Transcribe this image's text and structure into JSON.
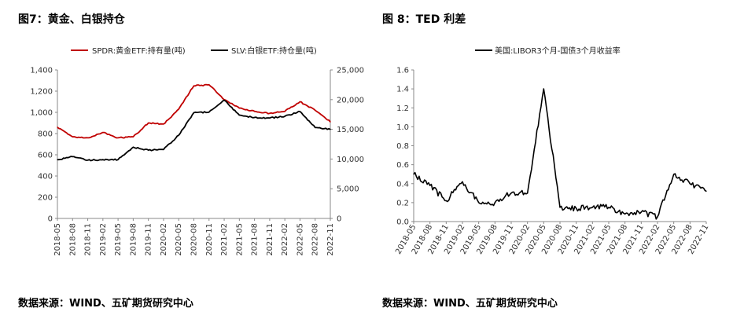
{
  "left": {
    "title": "图7：黄金、白银持仓",
    "source": "数据来源：WIND、五矿期货研究中心",
    "chart_data": {
      "type": "line",
      "title": "图7：黄金、白银持仓",
      "x": [
        "2018-05",
        "2018-08",
        "2018-11",
        "2019-02",
        "2019-05",
        "2019-08",
        "2019-11",
        "2020-02",
        "2020-05",
        "2020-08",
        "2020-11",
        "2021-02",
        "2021-05",
        "2021-08",
        "2021-11",
        "2022-02",
        "2022-05",
        "2022-08",
        "2022-11"
      ],
      "y_left_ticks": [
        "0",
        "200",
        "400",
        "600",
        "800",
        "1,000",
        "1,200",
        "1,400"
      ],
      "y_right_ticks": [
        "0",
        "5,000",
        "10,000",
        "15,000",
        "20,000",
        "25,000"
      ],
      "ylim_left": [
        0,
        1400
      ],
      "ylim_right": [
        0,
        25000
      ],
      "series": [
        {
          "name": "SPDR:黄金ETF:持有量(吨)",
          "axis": "left",
          "color": "#c00000",
          "values": [
            860,
            770,
            760,
            810,
            760,
            770,
            900,
            890,
            1030,
            1250,
            1260,
            1120,
            1040,
            1010,
            990,
            1010,
            1100,
            1020,
            910
          ]
        },
        {
          "name": "SLV:白银ETF:持仓量(吨)",
          "axis": "right",
          "color": "#000000",
          "values": [
            9900,
            10400,
            9800,
            9900,
            9900,
            12000,
            11500,
            11600,
            14000,
            17800,
            17900,
            19900,
            17400,
            17000,
            16900,
            17200,
            18000,
            15300,
            15000
          ]
        }
      ]
    }
  },
  "right": {
    "title": "图 8：TED 利差",
    "source": "数据来源：WIND、五矿期货研究中心",
    "chart_data": {
      "type": "line",
      "title": "图 8：TED 利差",
      "x": [
        "2018-05",
        "2018-08",
        "2018-11",
        "2019-02",
        "2019-05",
        "2019-08",
        "2019-11",
        "2020-02",
        "2020-05",
        "2020-08",
        "2020-11",
        "2021-02",
        "2021-05",
        "2021-08",
        "2021-11",
        "2022-02",
        "2022-05",
        "2022-08",
        "2022-11"
      ],
      "y_ticks": [
        "0.0",
        "0.2",
        "0.4",
        "0.6",
        "0.8",
        "1.0",
        "1.2",
        "1.4",
        "1.6"
      ],
      "ylim": [
        0,
        1.6
      ],
      "series": [
        {
          "name": "美国:LIBOR3个月-国债3个月收益率",
          "color": "#000000",
          "values": [
            0.5,
            0.38,
            0.22,
            0.42,
            0.2,
            0.2,
            0.3,
            0.3,
            1.4,
            0.15,
            0.14,
            0.15,
            0.15,
            0.08,
            0.1,
            0.05,
            0.5,
            0.4,
            0.32
          ]
        }
      ]
    }
  }
}
